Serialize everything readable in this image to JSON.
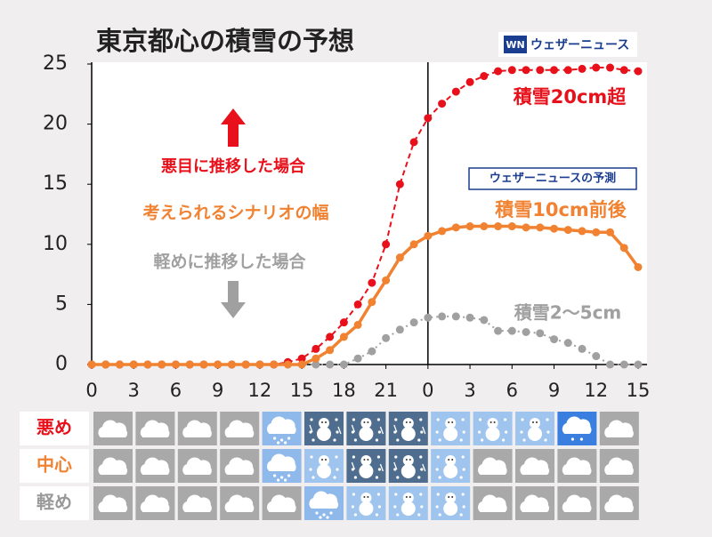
{
  "chart_data": {
    "type": "line",
    "title": "東京都心の積雪の予想",
    "brand": "ウェザーニュース",
    "x": [
      0,
      1,
      2,
      3,
      4,
      5,
      6,
      7,
      8,
      9,
      10,
      11,
      12,
      13,
      14,
      15,
      16,
      17,
      18,
      19,
      20,
      21,
      22,
      23,
      24,
      25,
      26,
      27,
      28,
      29,
      30,
      31,
      32,
      33,
      34,
      35,
      36,
      37,
      38,
      39
    ],
    "xlim": [
      0,
      39
    ],
    "xticks": [
      0,
      3,
      6,
      9,
      12,
      15,
      18,
      21,
      {
        "value": 24,
        "label": "0"
      },
      {
        "value": 27,
        "label": "3"
      },
      {
        "value": 30,
        "label": "6"
      },
      {
        "value": 33,
        "label": "9"
      },
      {
        "value": 36,
        "label": "12"
      },
      {
        "value": 39,
        "label": "15"
      }
    ],
    "ylim": [
      0,
      25
    ],
    "yticks": [
      0,
      5,
      10,
      15,
      20,
      25
    ],
    "day_divider": 24,
    "series": [
      {
        "name": "軽めに推移した場合",
        "color": "#a0a0a0",
        "dash": "dotted",
        "values": [
          0,
          0,
          0,
          0,
          0,
          0,
          0,
          0,
          0,
          0,
          0,
          0,
          0,
          0,
          0,
          0,
          0,
          0,
          0,
          0.5,
          1.1,
          2.2,
          2.9,
          3.5,
          3.9,
          4,
          4,
          3.9,
          3.7,
          2.8,
          2.8,
          2.7,
          2.6,
          2.1,
          1.8,
          1.3,
          0.7,
          0,
          0,
          0
        ]
      },
      {
        "name": "悪目に推移した場合",
        "color": "#e8101a",
        "dash": "dashed",
        "values": [
          0,
          0,
          0,
          0,
          0,
          0,
          0,
          0,
          0,
          0,
          0,
          0,
          0,
          0,
          0.2,
          0.5,
          1.3,
          2.3,
          3.5,
          5,
          6.8,
          10,
          15,
          18.5,
          20.5,
          21.7,
          22.7,
          23.5,
          24,
          24.4,
          24.5,
          24.5,
          24.5,
          24.5,
          24.5,
          24.6,
          24.7,
          24.7,
          24.5,
          24.4
        ]
      },
      {
        "name": "考えられるシナリオの幅",
        "color": "#f08232",
        "dash": "solid",
        "values": [
          0,
          0,
          0,
          0,
          0,
          0,
          0,
          0,
          0,
          0,
          0,
          0,
          0,
          0,
          0,
          0,
          0.5,
          1.2,
          2.3,
          3.3,
          5.2,
          7,
          8.9,
          10,
          10.7,
          11.1,
          11.4,
          11.5,
          11.5,
          11.5,
          11.5,
          11.4,
          11.4,
          11.3,
          11.2,
          11.1,
          11,
          11,
          9.7,
          8.1
        ]
      }
    ],
    "annotations": {
      "high": "積雪20cm超",
      "mid": "積雪10cm前後",
      "low": "積雪2〜5cm",
      "forecast_tag": "ウェザーニュースの予測"
    },
    "forecast_rows": [
      {
        "label": "悪め",
        "color": "#e8101a",
        "icons": [
          "cloud",
          "cloud",
          "cloud",
          "cloud",
          "snowcloud",
          "snow-heavy",
          "snow-heavy",
          "snow-heavy",
          "snow",
          "snow",
          "snow",
          "rain",
          "cloud"
        ]
      },
      {
        "label": "中心",
        "color": "#f08232",
        "icons": [
          "cloud",
          "cloud",
          "cloud",
          "cloud",
          "snowcloud",
          "snow",
          "snow-heavy",
          "snow-heavy",
          "snow",
          "cloud",
          "cloud",
          "cloud",
          "cloud"
        ]
      },
      {
        "label": "軽め",
        "color": "#999999",
        "icons": [
          "cloud",
          "cloud",
          "cloud",
          "cloud",
          "cloud",
          "snowcloud",
          "snow",
          "snow",
          "snow",
          "cloud",
          "cloud",
          "cloud",
          "cloud"
        ]
      }
    ]
  }
}
